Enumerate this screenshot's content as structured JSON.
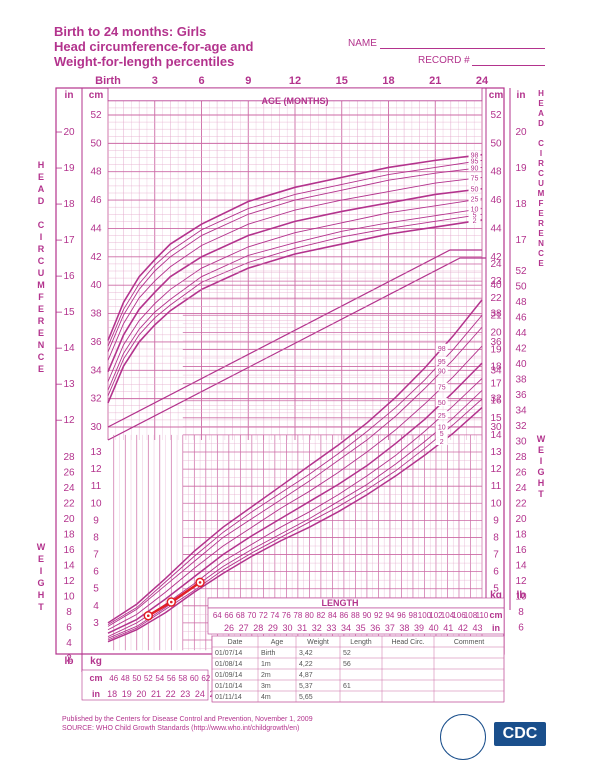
{
  "header": {
    "title_line1": "Birth to 24 months: Girls",
    "title_line2": "Head circumference-for-age and",
    "title_line3": "Weight-for-length percentiles",
    "name_label": "NAME",
    "record_label": "RECORD #"
  },
  "footer": {
    "line1": "Published by the Centers for Disease Control and Prevention, November 1, 2009",
    "line2": "SOURCE:  WHO Child Growth Standards (http://www.who.int/childgrowth/en)",
    "logo_text": "CDC"
  },
  "chart_data": [
    {
      "type": "line",
      "title": "Head circumference-for-age",
      "xlabel": "AGE (MONTHS)",
      "ylabel": "HEAD CIRCUMFERENCE",
      "age_ticks": [
        "Birth",
        "3",
        "6",
        "9",
        "12",
        "15",
        "18",
        "21",
        "24"
      ],
      "age_tick_values": [
        0,
        3,
        6,
        9,
        12,
        15,
        18,
        21,
        24
      ],
      "xlim": [
        0,
        24
      ],
      "ylim_cm": [
        30,
        53
      ],
      "cm_ticks": [
        30,
        32,
        34,
        36,
        38,
        40,
        42,
        44,
        46,
        48,
        50,
        52
      ],
      "in_ticks": [
        12,
        13,
        14,
        15,
        16,
        17,
        18,
        19,
        20
      ],
      "x": [
        0,
        1,
        2,
        3,
        4,
        6,
        9,
        12,
        15,
        18,
        21,
        24
      ],
      "series": [
        {
          "name": "2",
          "values": [
            31.7,
            34.3,
            36.0,
            37.2,
            38.2,
            39.7,
            41.2,
            42.2,
            42.9,
            43.6,
            44.1,
            44.6
          ]
        },
        {
          "name": "5",
          "values": [
            32.2,
            34.8,
            36.5,
            37.7,
            38.6,
            40.2,
            41.6,
            42.6,
            43.4,
            44.0,
            44.5,
            45.0
          ]
        },
        {
          "name": "10",
          "values": [
            32.6,
            35.2,
            36.9,
            38.1,
            39.0,
            40.6,
            42.1,
            43.0,
            43.8,
            44.4,
            44.9,
            45.4
          ]
        },
        {
          "name": "25",
          "values": [
            33.2,
            35.8,
            37.5,
            38.7,
            39.7,
            41.2,
            42.7,
            43.7,
            44.4,
            45.1,
            45.6,
            46.1
          ]
        },
        {
          "name": "50",
          "values": [
            33.9,
            36.5,
            38.3,
            39.5,
            40.6,
            42.0,
            43.5,
            44.5,
            45.2,
            45.8,
            46.4,
            46.8
          ]
        },
        {
          "name": "75",
          "values": [
            34.7,
            37.3,
            39.1,
            40.3,
            41.3,
            42.8,
            44.3,
            45.3,
            46.0,
            46.6,
            47.2,
            47.6
          ]
        },
        {
          "name": "90",
          "values": [
            35.3,
            37.9,
            39.7,
            41.0,
            42.0,
            43.5,
            45.0,
            46.0,
            46.7,
            47.4,
            47.9,
            48.3
          ]
        },
        {
          "name": "95",
          "values": [
            35.7,
            38.3,
            40.1,
            41.4,
            42.4,
            43.9,
            45.4,
            46.4,
            47.1,
            47.8,
            48.3,
            48.8
          ]
        },
        {
          "name": "98",
          "values": [
            36.1,
            38.8,
            40.6,
            41.8,
            42.9,
            44.3,
            45.9,
            46.9,
            47.6,
            48.3,
            48.8,
            49.2
          ]
        }
      ]
    },
    {
      "type": "line",
      "title": "Weight-for-length",
      "xlabel": "LENGTH",
      "ylabel": "WEIGHT",
      "length_ticks_cm": [
        46,
        48,
        50,
        52,
        54,
        56,
        58,
        60,
        62,
        64,
        66,
        68,
        70,
        72,
        74,
        76,
        78,
        80,
        82,
        84,
        86,
        88,
        90,
        92,
        94,
        96,
        98,
        100,
        102,
        104,
        106,
        108,
        110
      ],
      "length_ticks_in": [
        18,
        19,
        20,
        21,
        22,
        23,
        24,
        25,
        26,
        27,
        28,
        29,
        30,
        31,
        32,
        33,
        34,
        35,
        36,
        37,
        38,
        39,
        40,
        41,
        42,
        43
      ],
      "xlim": [
        45,
        110
      ],
      "ylim_kg": [
        1,
        24
      ],
      "kg_ticks": [
        1,
        2,
        3,
        4,
        5,
        6,
        7,
        8,
        9,
        10,
        11,
        12,
        13,
        14,
        15,
        16,
        17,
        18,
        19,
        20,
        21,
        22,
        23,
        24
      ],
      "lb_ticks": [
        2,
        4,
        6,
        8,
        10,
        12,
        14,
        16,
        18,
        20,
        22,
        24,
        26,
        28,
        30,
        32,
        34,
        36,
        38,
        40,
        42,
        44,
        46,
        48,
        50,
        52
      ],
      "x": [
        45,
        50,
        55,
        60,
        65,
        70,
        75,
        80,
        85,
        90,
        95,
        100,
        105,
        110
      ],
      "series": [
        {
          "name": "2",
          "values": [
            1.9,
            2.6,
            3.6,
            4.8,
            5.9,
            6.9,
            7.8,
            8.6,
            9.5,
            10.5,
            11.6,
            12.8,
            14.1,
            15.6
          ]
        },
        {
          "name": "5",
          "values": [
            2.0,
            2.7,
            3.8,
            4.9,
            6.1,
            7.1,
            8.0,
            8.9,
            9.8,
            10.8,
            11.9,
            13.2,
            14.6,
            16.1
          ]
        },
        {
          "name": "10",
          "values": [
            2.1,
            2.8,
            3.9,
            5.1,
            6.3,
            7.3,
            8.2,
            9.1,
            10.1,
            11.1,
            12.3,
            13.6,
            15.0,
            16.6
          ]
        },
        {
          "name": "25",
          "values": [
            2.2,
            3.0,
            4.1,
            5.3,
            6.6,
            7.6,
            8.6,
            9.5,
            10.5,
            11.6,
            12.8,
            14.2,
            15.7,
            17.3
          ]
        },
        {
          "name": "50",
          "values": [
            2.4,
            3.2,
            4.4,
            5.7,
            7.0,
            8.1,
            9.1,
            10.1,
            11.1,
            12.2,
            13.5,
            14.9,
            16.5,
            18.2
          ]
        },
        {
          "name": "75",
          "values": [
            2.6,
            3.5,
            4.8,
            6.2,
            7.5,
            8.6,
            9.7,
            10.7,
            11.8,
            13.0,
            14.3,
            15.8,
            17.4,
            19.2
          ]
        },
        {
          "name": "90",
          "values": [
            2.8,
            3.8,
            5.2,
            6.6,
            8.0,
            9.1,
            10.2,
            11.3,
            12.5,
            13.7,
            15.1,
            16.7,
            18.4,
            20.3
          ]
        },
        {
          "name": "95",
          "values": [
            2.9,
            3.9,
            5.4,
            6.9,
            8.3,
            9.5,
            10.6,
            11.7,
            12.9,
            14.2,
            15.6,
            17.2,
            19.0,
            21.0
          ]
        },
        {
          "name": "98",
          "values": [
            3.0,
            4.1,
            5.6,
            7.2,
            8.6,
            9.8,
            11.0,
            12.2,
            13.4,
            14.7,
            16.2,
            17.9,
            19.8,
            21.9
          ]
        }
      ],
      "plotted_points": [
        {
          "length": 52,
          "weight": 3.42
        },
        {
          "length": 56,
          "weight": 4.22
        },
        {
          "length": 61,
          "weight": 5.37
        }
      ]
    }
  ],
  "record_table": {
    "headers": [
      "Date",
      "Age",
      "Weight",
      "Length",
      "Head Circ.",
      "Comment"
    ],
    "rows": [
      [
        "01/07/14",
        "Birth",
        "3,42",
        "52",
        "",
        ""
      ],
      [
        "01/08/14",
        "1m",
        "4,22",
        "56",
        "",
        ""
      ],
      [
        "01/09/14",
        "2m",
        "4,87",
        "",
        "",
        ""
      ],
      [
        "01/10/14",
        "3m",
        "5,37",
        "61",
        "",
        ""
      ],
      [
        "01/11/14",
        "4m",
        "5,65",
        "",
        "",
        ""
      ]
    ]
  },
  "labels": {
    "head_side": "HEAD CIRCUMFERENCE",
    "weight_side": "WEIGHT",
    "age_header": "AGE (MONTHS)",
    "length_header": "LENGTH",
    "unit_in": "in",
    "unit_cm": "cm",
    "unit_lb": "lb",
    "unit_kg": "kg"
  },
  "colors": {
    "accent": "#b3338d",
    "grid": "#e3a9cc",
    "grid_major": "#cc6aa5",
    "patient": "#e21f26"
  }
}
